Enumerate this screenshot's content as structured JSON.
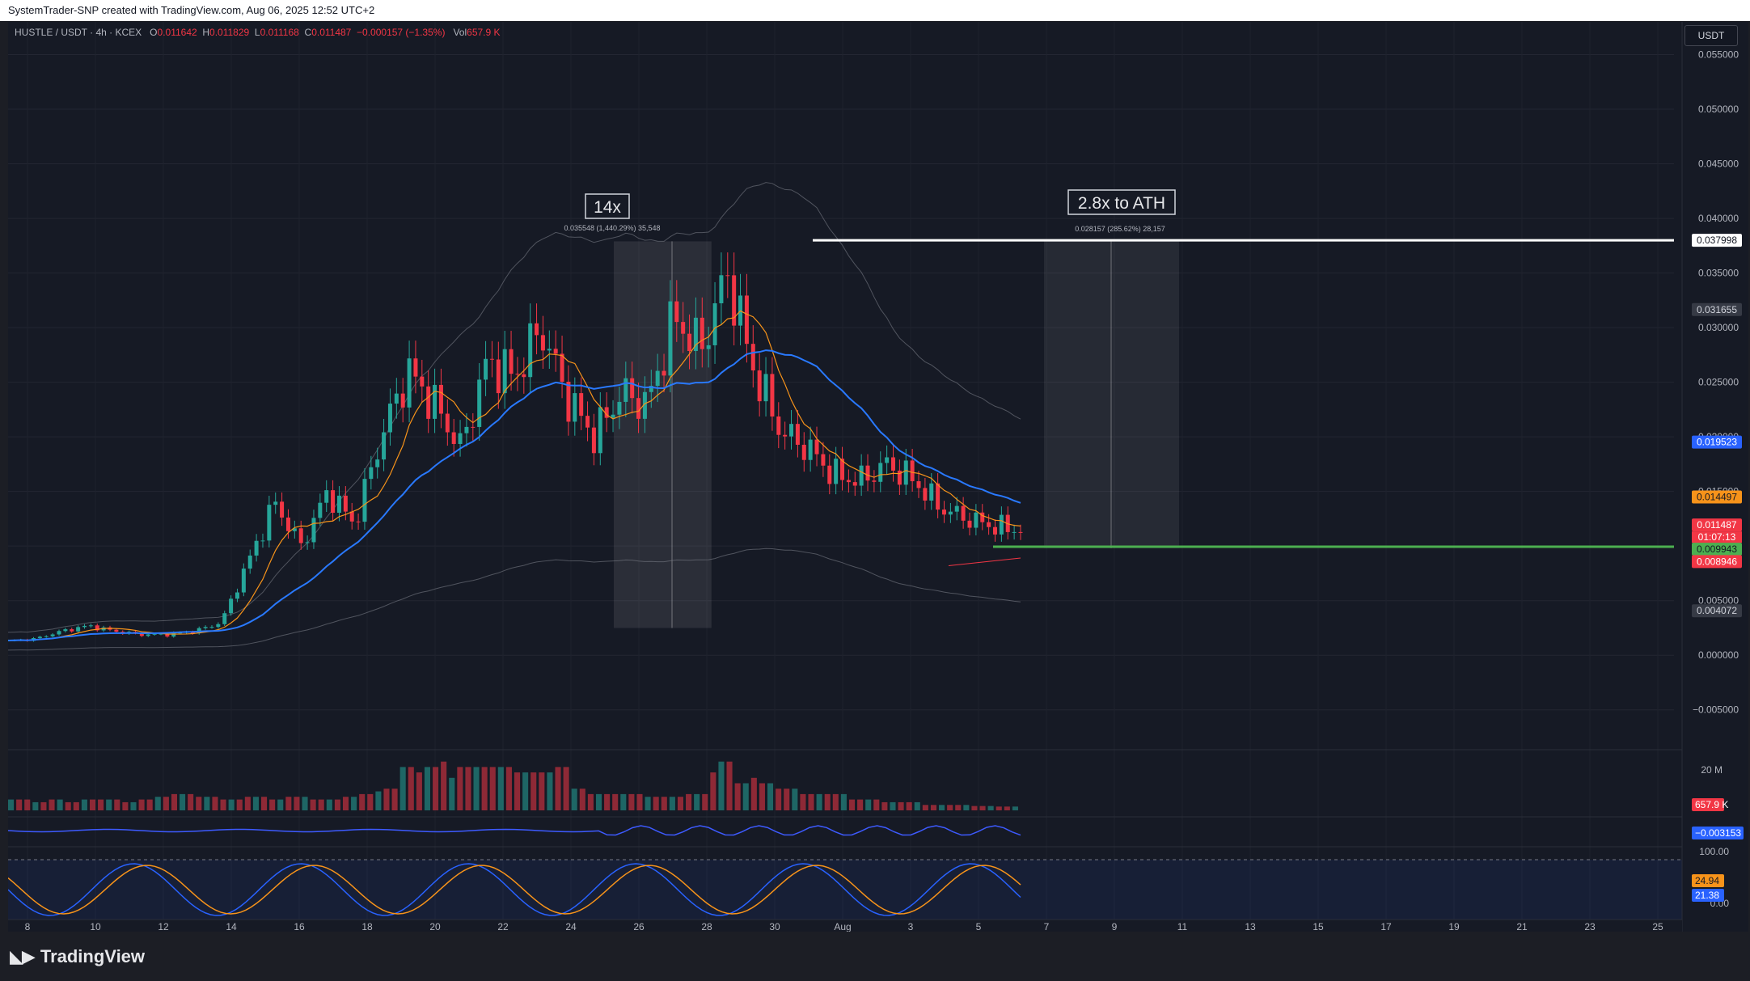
{
  "header": {
    "credit": "SystemTrader-SNP created with TradingView.com, Aug 06, 2025 12:52 UTC+2"
  },
  "legend": {
    "symbol": "HUSTLE / USDT · 4h · KCEX",
    "open_label": "O",
    "open": "0.011642",
    "high_label": "H",
    "high": "0.011829",
    "low_label": "L",
    "low": "0.011168",
    "close_label": "C",
    "close": "0.011487",
    "change": "−0.000157 (−1.35%)",
    "vol_label": "Vol",
    "vol": "657.9 K"
  },
  "currency_button": "USDT",
  "brand": {
    "name": "TradingView",
    "logo_icon": "tradingview-logo-icon"
  },
  "colors": {
    "up": "#26a69a",
    "down": "#f23645",
    "background": "#161a25",
    "orange": "#f7931a",
    "blue": "#2962ff",
    "green_level": "#4caf50"
  },
  "chart_data": {
    "type": "candlestick",
    "symbol": "HUSTLE/USDT",
    "timeframe": "4h",
    "exchange": "KCEX",
    "y_axis": {
      "ylim": [
        -0.0085,
        0.058
      ],
      "ticks": [
        "0.055000",
        "0.050000",
        "0.045000",
        "0.040000",
        "0.035000",
        "0.030000",
        "0.025000",
        "0.020000",
        "0.015000",
        "0.010000",
        "0.005000",
        "0.000000",
        "−0.005000"
      ]
    },
    "x_axis": {
      "ticks": [
        "8",
        "10",
        "12",
        "14",
        "16",
        "18",
        "20",
        "22",
        "24",
        "26",
        "28",
        "30",
        "Aug",
        "3",
        "5",
        "7",
        "9",
        "11",
        "13",
        "15",
        "17",
        "19",
        "21",
        "23",
        "25"
      ]
    },
    "price_series": [
      [
        "Jul 7",
        0.0013
      ],
      [
        "Jul 15",
        0.0015
      ],
      [
        "Jul 16",
        0.0022
      ],
      [
        "Jul 17",
        0.0027
      ],
      [
        "Jul 18",
        0.0022
      ],
      [
        "Jul 20",
        0.0019
      ],
      [
        "Jul 22",
        0.0019
      ],
      [
        "Jul 23",
        0.0022
      ],
      [
        "Jul 24",
        0.003
      ],
      [
        "Jul 24",
        0.0085
      ],
      [
        "Jul 24",
        0.014
      ],
      [
        "Jul 25",
        0.01
      ],
      [
        "Jul 25",
        0.015
      ],
      [
        "Jul 26",
        0.012
      ],
      [
        "Jul 26",
        0.02
      ],
      [
        "Jul 27",
        0.026
      ],
      [
        "Jul 27",
        0.023
      ],
      [
        "Jul 28",
        0.019
      ],
      [
        "Jul 28",
        0.027
      ],
      [
        "Jul 28",
        0.0255
      ],
      [
        "Jul 29",
        0.03
      ],
      [
        "Jul 29",
        0.0235
      ],
      [
        "Jul 30",
        0.02
      ],
      [
        "Jul 30",
        0.024
      ],
      [
        "Jul 31",
        0.023
      ],
      [
        "Jul 31",
        0.031
      ],
      [
        "Jul 31",
        0.028
      ],
      [
        "Aug 1",
        0.035
      ],
      [
        "Aug 1",
        0.026
      ],
      [
        "Aug 2",
        0.0205
      ],
      [
        "Aug 2",
        0.019
      ],
      [
        "Aug 3",
        0.0165
      ],
      [
        "Aug 3",
        0.016
      ],
      [
        "Aug 4",
        0.0175
      ],
      [
        "Aug 4",
        0.016
      ],
      [
        "Aug 5",
        0.0135
      ],
      [
        "Aug 5",
        0.0125
      ],
      [
        "Aug 6",
        0.0118
      ],
      [
        "Aug 6",
        0.011487
      ]
    ],
    "levels": [
      {
        "name": "ATH",
        "value": 0.037998,
        "label": "0.037998",
        "color": "#ffffff"
      },
      {
        "name": "support",
        "value": 0.009943,
        "label": "0.009943",
        "color": "#4caf50"
      }
    ],
    "price_labels": [
      {
        "value": 0.037998,
        "text": "0.037998",
        "bg": "#ffffff",
        "fg": "#131722"
      },
      {
        "value": 0.031655,
        "text": "0.031655",
        "bg": "#363a45",
        "fg": "#d1d4dc"
      },
      {
        "value": 0.019523,
        "text": "0.019523",
        "bg": "#2962ff",
        "fg": "#ffffff"
      },
      {
        "value": 0.014497,
        "text": "0.014497",
        "bg": "#f7931a",
        "fg": "#131722"
      },
      {
        "value": 0.011487,
        "text": "0.011487",
        "bg": "#f23645",
        "fg": "#ffffff"
      },
      {
        "value": 0.009943,
        "text": "0.009943",
        "bg": "#4caf50",
        "fg": "#131722"
      },
      {
        "value": 0.008946,
        "text": "0.008946",
        "bg": "#f23645",
        "fg": "#ffffff"
      },
      {
        "value": 0.004072,
        "text": "0.004072",
        "bg": "#363a45",
        "fg": "#d1d4dc"
      }
    ],
    "countdown": "01:07:13",
    "annotations": [
      {
        "title": "14x",
        "detail": "0.035548 (1,440.29%) 35,548"
      },
      {
        "title": "2.8x to ATH",
        "detail": "0.028157 (285.62%) 28,157"
      }
    ],
    "volume_pane": {
      "tick": "20 M",
      "last_label": "657.9 K",
      "values_m": [
        2,
        2,
        2,
        1.5,
        1.5,
        2,
        2,
        1.5,
        1.5,
        2,
        2,
        2,
        2,
        2,
        1.5,
        1.5,
        2,
        2,
        2.5,
        2.5,
        3,
        3,
        3,
        2.5,
        2.5,
        2.5,
        2,
        2,
        2,
        2.5,
        2.5,
        2.5,
        2,
        2,
        2.5,
        2.5,
        2.5,
        2,
        2,
        2,
        2,
        2.5,
        2.5,
        3,
        3,
        3.5,
        4,
        4,
        8,
        8,
        7,
        8,
        8,
        9,
        6,
        8,
        8,
        8,
        8,
        8,
        8,
        8,
        7,
        7,
        7,
        7,
        7,
        8,
        8,
        4,
        4,
        3,
        3,
        3,
        3,
        3,
        3,
        3,
        2.5,
        2.5,
        2.5,
        2.5,
        2.5,
        3,
        3,
        3,
        7,
        9,
        9,
        5,
        5,
        6,
        5,
        5,
        4,
        4,
        4,
        3,
        3,
        3,
        3,
        3,
        3,
        2,
        2,
        2,
        2,
        1.5,
        1.5,
        1.5,
        1.5,
        1.5,
        1,
        1,
        1,
        1,
        1,
        1,
        0.8,
        0.8,
        0.8,
        0.7,
        0.7,
        0.7
      ]
    },
    "indicator_pane": {
      "last_label": "−0.003153"
    },
    "stoch_pane": {
      "ticks": [
        "100.00",
        "0.00"
      ],
      "k_label": "24.94",
      "d_label": "21.38"
    }
  }
}
